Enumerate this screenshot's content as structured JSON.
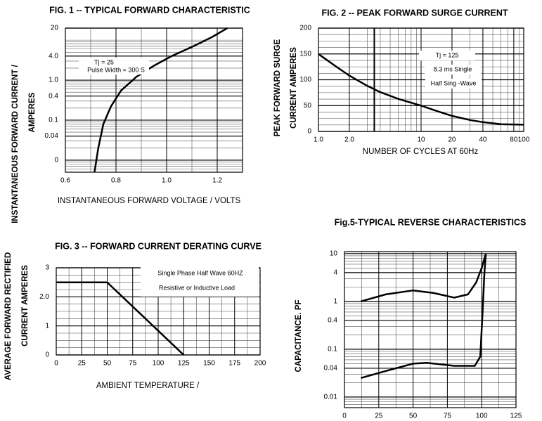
{
  "chart_data": [
    {
      "type": "line",
      "title": "FIG. 1  --  TYPICAL FORWARD CHARACTERISTIC",
      "xlabel": "INSTANTANEOUS FORWARD VOLTAGE / VOLTS",
      "ylabel": [
        "INSTANTANEOUS FORWARD CURRENT /",
        "AMPERES"
      ],
      "annotations": [
        "Tj = 25",
        "Pulse Width = 300  S"
      ],
      "xlim": [
        0.6,
        1.3
      ],
      "xticks": [
        0.6,
        0.8,
        {
          "value": 1.0,
          "label": "1.0"
        },
        1.2
      ],
      "ylim": [
        0.005,
        20
      ],
      "ylog": true,
      "yticks": [
        20,
        {
          "value": 4,
          "label": "4.0"
        },
        {
          "value": 1,
          "label": "1.0"
        },
        0.4,
        0.1,
        0.04,
        {
          "value": 0.01,
          "label": "0"
        }
      ],
      "grid": true,
      "color": "#000000",
      "series": [
        {
          "x": [
            0.715,
            0.73,
            0.75,
            0.78,
            0.82,
            0.88,
            0.95,
            1.02,
            1.1,
            1.18,
            1.24
          ],
          "values": [
            0.005,
            0.02,
            0.08,
            0.22,
            0.55,
            1.2,
            2.3,
            4.0,
            6.8,
            12,
            20
          ]
        }
      ]
    },
    {
      "type": "line",
      "title": "FIG. 2 -- PEAK FORWARD SURGE CURRENT",
      "xlabel": "NUMBER OF CYCLES AT 60Hz",
      "ylabel": [
        "PEAK FORWARD SURGE",
        "CURRENT AMPERES"
      ],
      "annotations": [
        "Tj = 125",
        "8.3 ms  Single",
        "Half  Sing -Wave"
      ],
      "xlim": [
        1,
        100
      ],
      "xlog": true,
      "xticks": [
        {
          "value": 1,
          "label": "1.0"
        },
        {
          "value": 2,
          "label": "2.0"
        },
        10,
        20,
        40,
        80,
        100
      ],
      "ylim": [
        0,
        200
      ],
      "yticks": [
        0,
        50,
        100,
        150,
        200
      ],
      "grid": true,
      "color": "#000000",
      "series": [
        {
          "x": [
            1,
            1.5,
            2,
            3,
            4,
            6,
            10,
            15,
            20,
            30,
            40,
            60,
            100
          ],
          "values": [
            150,
            125,
            108,
            88,
            76,
            63,
            50,
            38,
            30,
            22,
            18,
            14,
            13
          ]
        }
      ]
    },
    {
      "type": "line",
      "title": "FIG. 3 --  FORWARD CURRENT DERATING CURVE",
      "xlabel": "AMBIENT TEMPERATURE /",
      "ylabel": [
        "AVERAGE FORWARD RECTIFIED",
        "CURRENT AMPERES"
      ],
      "annotations": [
        "Single Phase Half Wave 60HZ",
        "Resistive  or  Inductive Load"
      ],
      "xlim": [
        0,
        200
      ],
      "xticks": [
        0,
        25,
        50,
        75,
        100,
        125,
        150,
        175,
        200
      ],
      "ylim": [
        0,
        3
      ],
      "yticks": [
        0,
        1,
        {
          "value": 2,
          "label": "2.0"
        },
        3
      ],
      "grid": true,
      "color": "#000000",
      "series": [
        {
          "x": [
            0,
            50,
            125
          ],
          "values": [
            2.5,
            2.5,
            0
          ]
        }
      ]
    },
    {
      "type": "line",
      "title": "Fig.5-TYPICAL REVERSE CHARACTERISTICS",
      "ylabel": [
        "CAPACITANCE. PF"
      ],
      "xlim": [
        0,
        125
      ],
      "xticks": [
        0,
        25,
        50,
        75,
        100,
        125
      ],
      "ylim": [
        0.006,
        11
      ],
      "ylog": true,
      "yticks": [
        10,
        4,
        1,
        0.4,
        0.1,
        0.04,
        0.01
      ],
      "grid": true,
      "color": "#000000",
      "series": [
        {
          "x": [
            12,
            30,
            50,
            65,
            80,
            90,
            96,
            100,
            103
          ],
          "values": [
            1.0,
            1.4,
            1.7,
            1.5,
            1.2,
            1.4,
            2.5,
            5,
            10
          ]
        },
        {
          "x": [
            12,
            30,
            50,
            60,
            80,
            95,
            99,
            100.5,
            102,
            103
          ],
          "values": [
            0.025,
            0.035,
            0.05,
            0.052,
            0.045,
            0.045,
            0.07,
            0.5,
            4,
            10
          ]
        }
      ]
    }
  ]
}
